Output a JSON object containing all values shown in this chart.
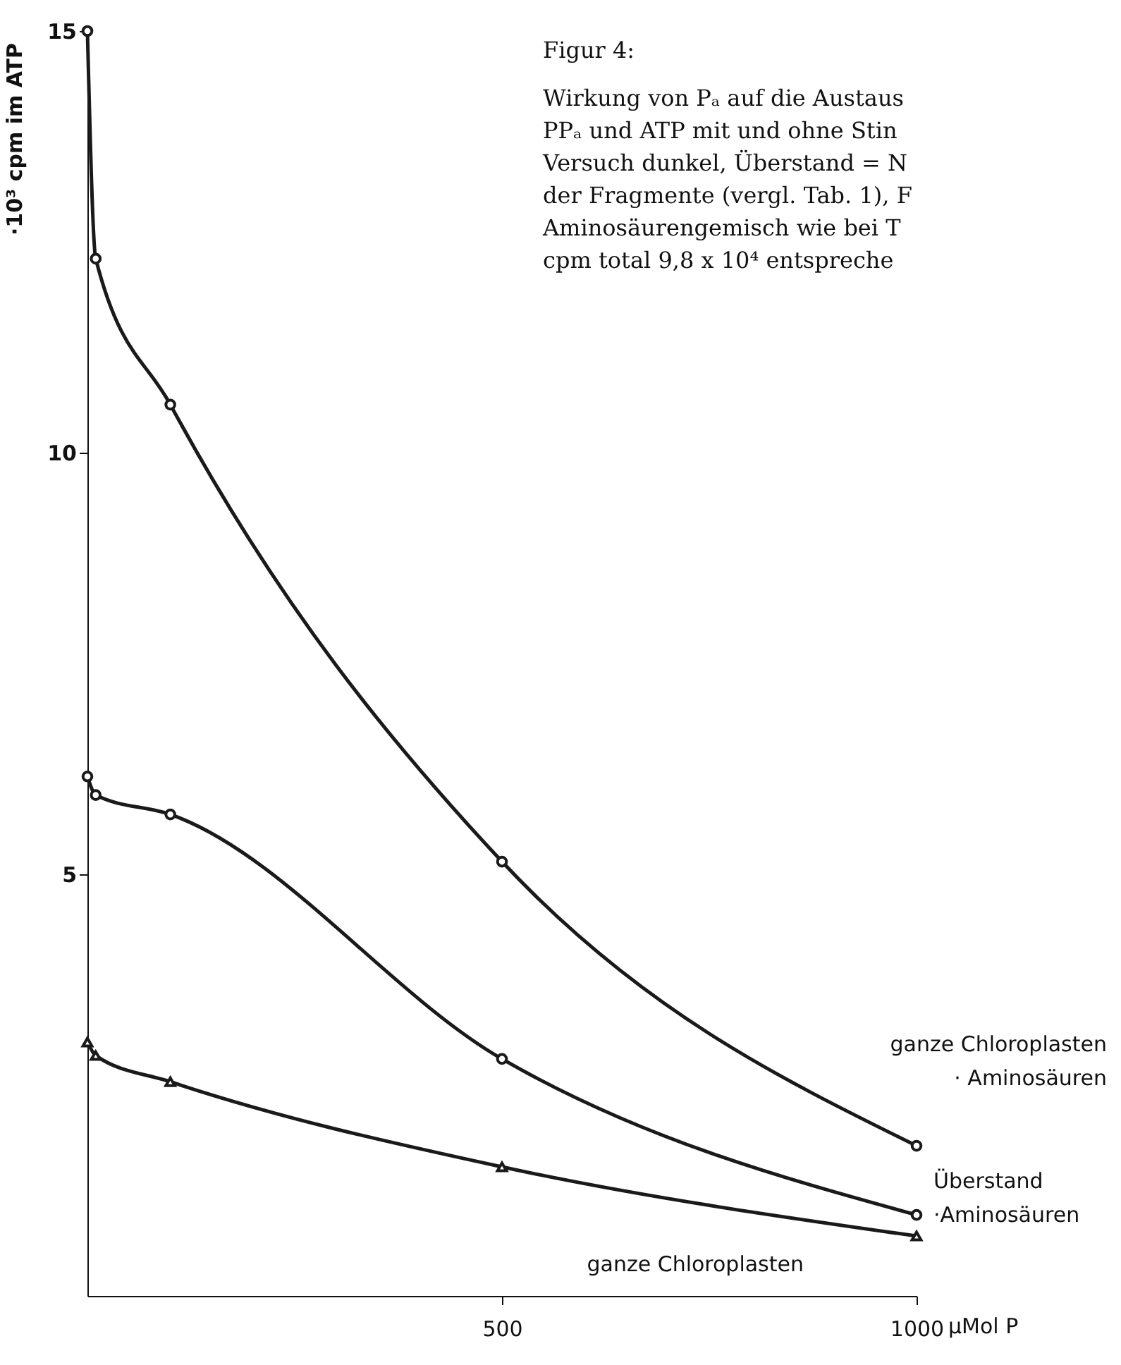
{
  "chart_data": {
    "type": "line",
    "title": "Figur 4:",
    "subtitle": [
      "Wirkung von Pₐ auf die Austaus",
      "PPₐ und ATP mit und ohne Stin",
      "Versuch dunkel, Überstand = N",
      "der Fragmente (vergl. Tab. 1), F",
      "Aminosäurengemisch wie bei T",
      "cpm total 9,8 x 10⁴ entspreche"
    ],
    "xlabel": "µMol P",
    "ylabel": "·10³ cpm im ATP",
    "x": [
      0,
      10,
      100,
      500,
      1000
    ],
    "series": [
      {
        "name": "ganze Chloroplasten\n· Aminosäuren",
        "color": "#1a1a1a",
        "marker": "circle",
        "values": [
          15.0,
          12.3,
          10.57,
          5.15,
          1.78
        ]
      },
      {
        "name": "Überstand\n·Aminosäuren",
        "color": "#1a1a1a",
        "marker": "circle",
        "values": [
          6.16,
          5.94,
          5.71,
          2.81,
          0.96
        ]
      },
      {
        "name": "ganze Chloroplasten",
        "color": "#1a1a1a",
        "marker": "triangle",
        "values": [
          3.01,
          2.85,
          2.54,
          1.53,
          0.71
        ]
      }
    ],
    "xlim": [
      0,
      1000
    ],
    "ylim": [
      0,
      15
    ],
    "xticks": [
      500,
      1000
    ],
    "yticks": [
      5,
      10,
      15
    ],
    "grid": false,
    "legend": false,
    "line_style": "solid"
  }
}
